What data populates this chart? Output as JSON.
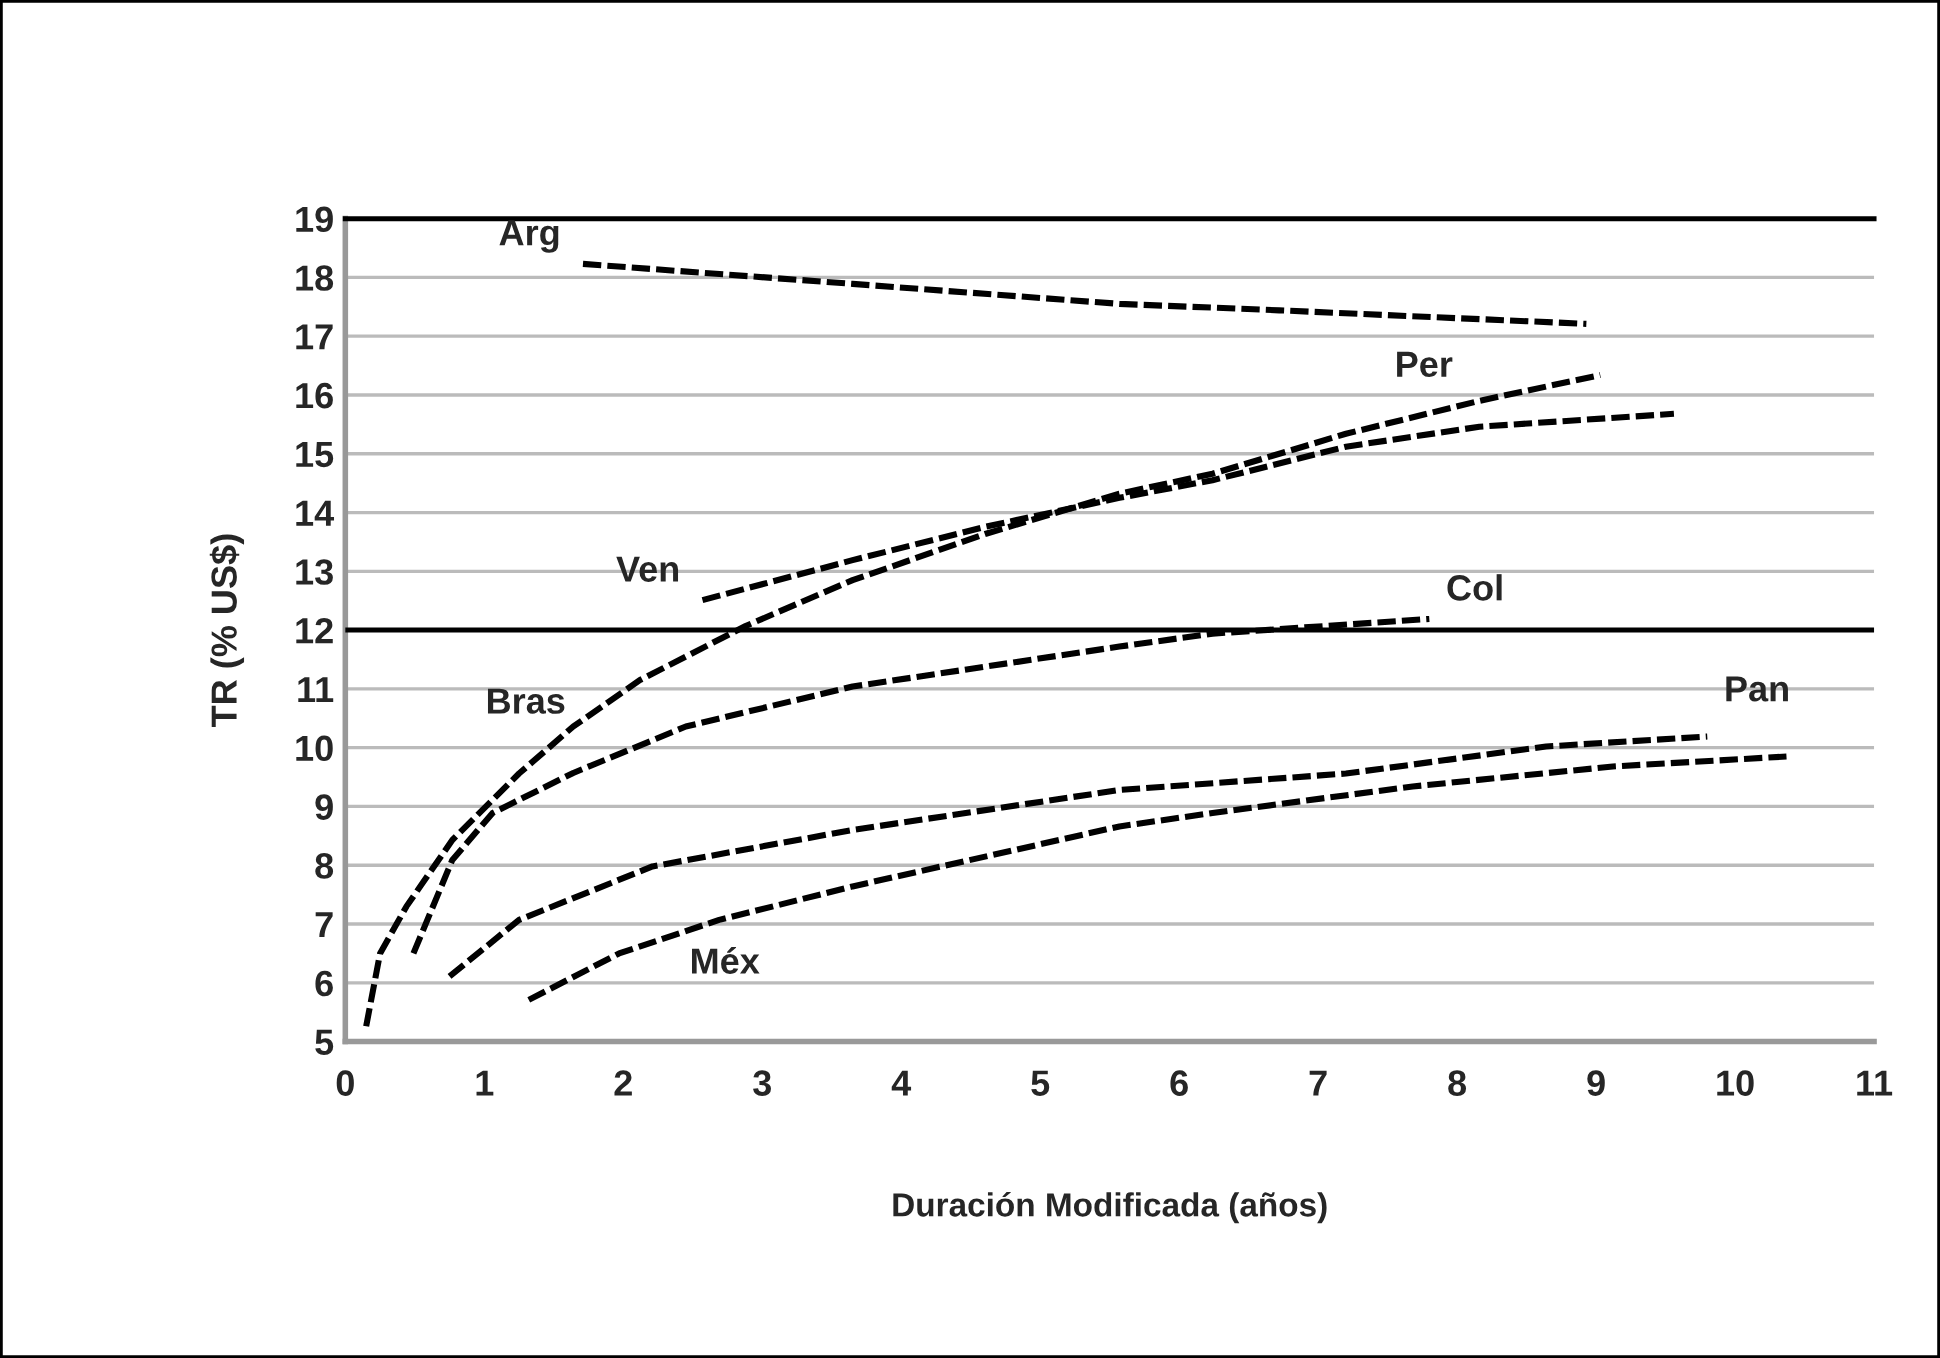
{
  "chart_data": {
    "type": "line",
    "xlabel": "Duración Modificada (años)",
    "ylabel": "TR (% US$)",
    "xlim": [
      0,
      11
    ],
    "xticks": [
      0,
      1,
      2,
      3,
      4,
      5,
      6,
      7,
      8,
      9,
      10,
      11
    ],
    "ylim": [
      5,
      19
    ],
    "yticks": [
      5,
      6,
      7,
      8,
      9,
      10,
      11,
      12,
      13,
      14,
      15,
      16,
      17,
      18,
      19
    ],
    "grid": "y",
    "legend": false,
    "marker": "none",
    "line_style": "dashed",
    "series": [
      {
        "name": "Arg",
        "color": "#000000",
        "x": [
          1.71,
          3.65,
          5.57,
          6.72,
          8.93
        ],
        "values": [
          18.23,
          17.89,
          17.55,
          17.44,
          17.21
        ]
      },
      {
        "name": "Per",
        "color": "#000000",
        "x": [
          0.15,
          0.25,
          0.44,
          0.77,
          1.25,
          1.64,
          2.12,
          2.88,
          3.65,
          4.61,
          5.57,
          6.24,
          7.2,
          8.16,
          9.03
        ],
        "values": [
          5.26,
          6.5,
          7.3,
          8.43,
          9.56,
          10.36,
          11.15,
          12.07,
          12.85,
          13.64,
          14.32,
          14.66,
          15.34,
          15.9,
          16.34
        ]
      },
      {
        "name": "Ven",
        "color": "#000000",
        "x": [
          2.57,
          3.65,
          4.61,
          5.57,
          6.24,
          7.2,
          8.16,
          9.56
        ],
        "values": [
          12.51,
          13.19,
          13.76,
          14.25,
          14.55,
          15.12,
          15.46,
          15.68
        ]
      },
      {
        "name": "Col",
        "color": "#000000",
        "x": [
          0.49,
          0.77,
          1.06,
          1.64,
          2.45,
          3.65,
          5.57,
          6.24,
          7.8
        ],
        "values": [
          6.5,
          8.09,
          8.89,
          9.57,
          10.36,
          11.04,
          11.72,
          11.94,
          12.19
        ]
      },
      {
        "name": "Pan",
        "color": "#000000",
        "x": [
          0.75,
          1.25,
          2.21,
          3.65,
          5.57,
          7.2,
          8.64,
          9.8
        ],
        "values": [
          6.11,
          7.07,
          7.98,
          8.6,
          9.28,
          9.56,
          10.02,
          10.19
        ]
      },
      {
        "name": "Méx",
        "color": "#000000",
        "x": [
          1.32,
          1.97,
          2.69,
          3.65,
          5.57,
          6.24,
          7.68,
          9.12,
          10.37
        ],
        "values": [
          5.71,
          6.5,
          7.07,
          7.64,
          8.66,
          8.89,
          9.34,
          9.68,
          9.85
        ]
      }
    ],
    "ref_lines": [
      {
        "axis": "y",
        "value": 12,
        "color": "#000000",
        "line_style": "solid"
      }
    ],
    "annotations": [
      "Bras"
    ]
  }
}
